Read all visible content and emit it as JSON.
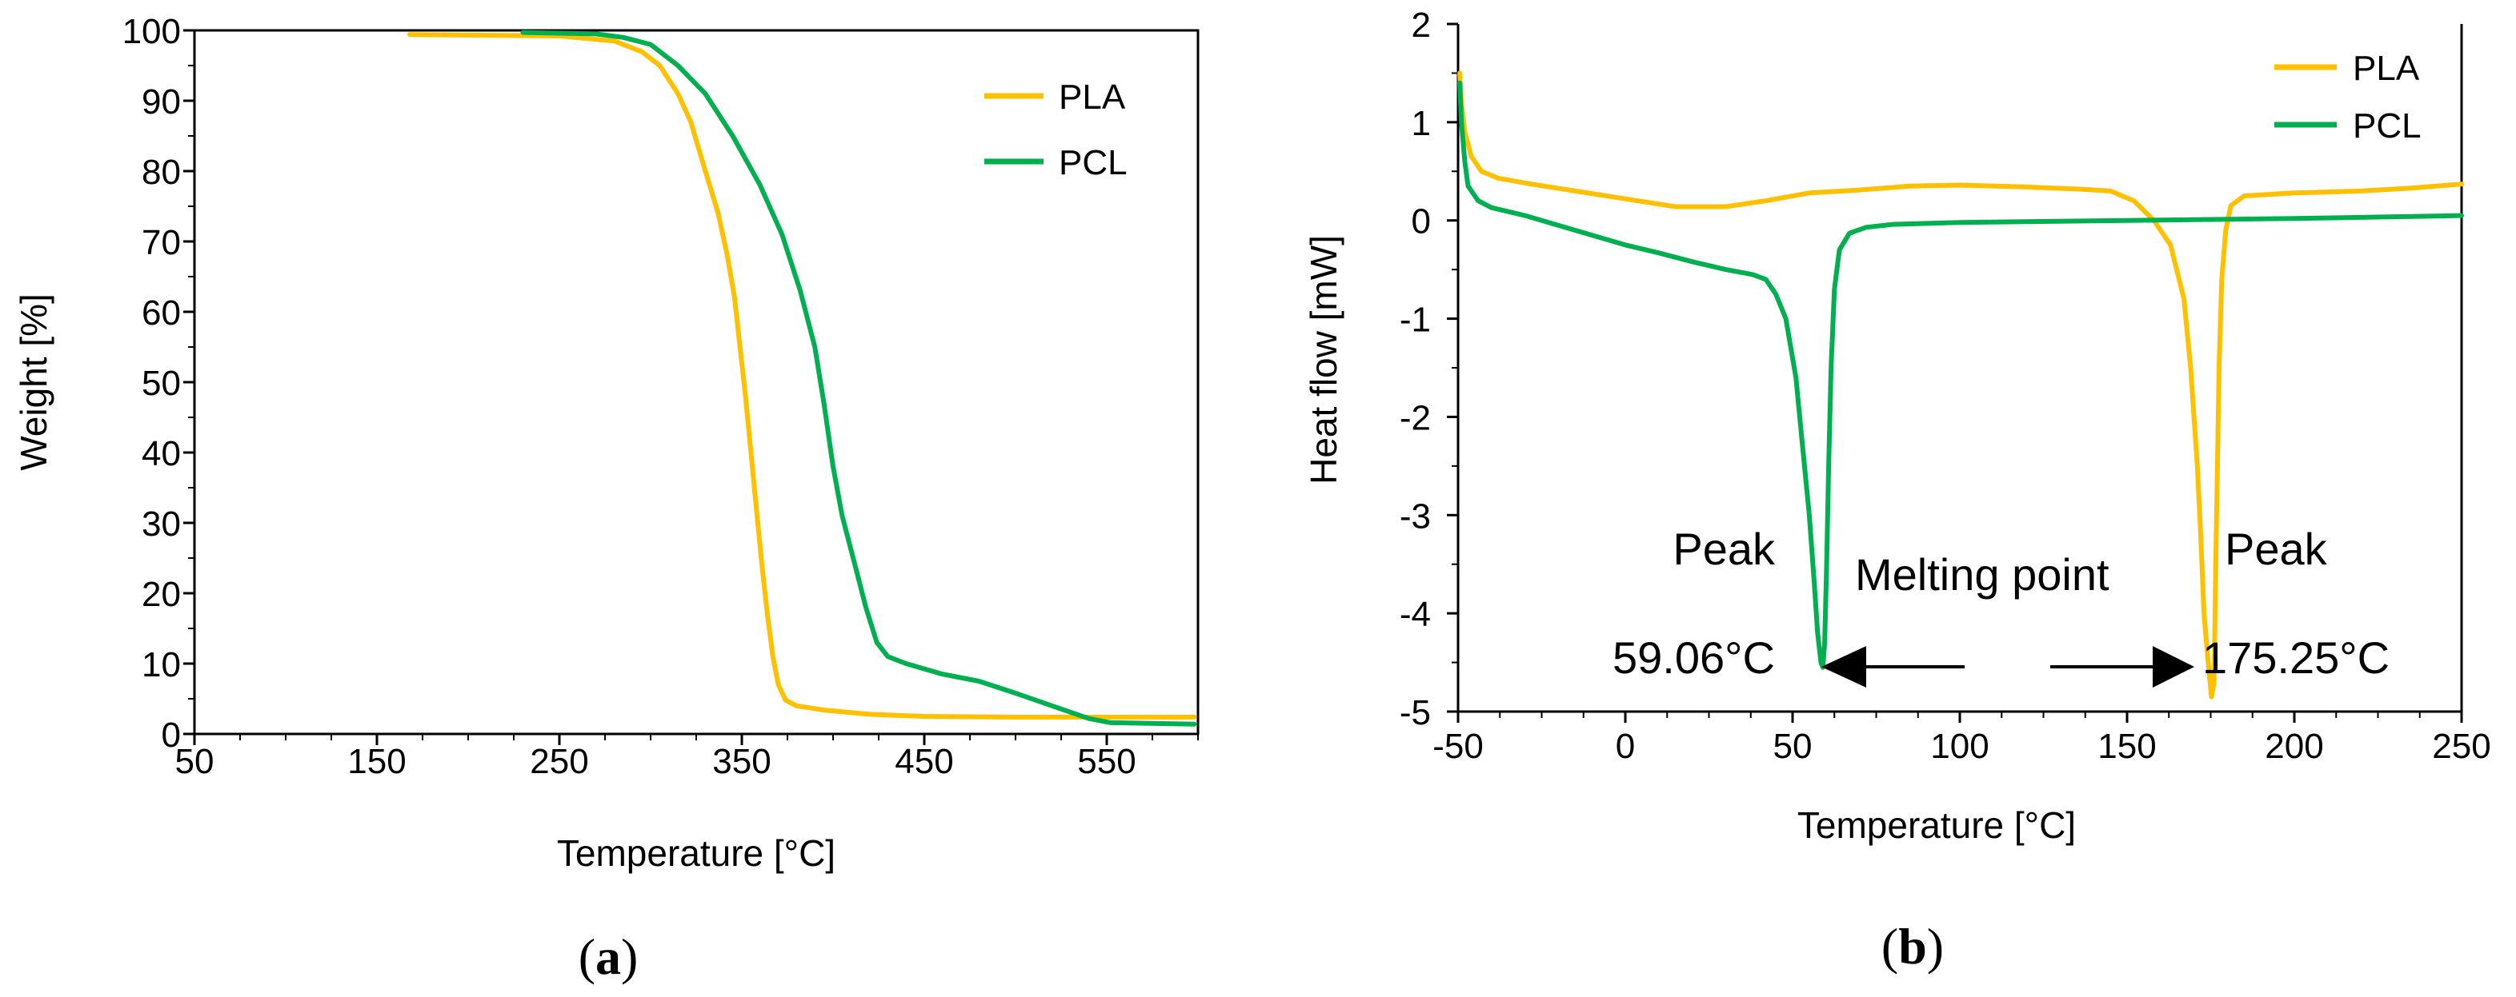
{
  "colors": {
    "PLA": "#FFC000",
    "PCL": "#00B050",
    "axis": "#000000"
  },
  "chart_data": [
    {
      "panel": "a",
      "type": "line",
      "panel_label_open": "(",
      "panel_label_letter": "a",
      "panel_label_close": ")",
      "xlabel": "Temperature [°C]",
      "ylabel": "Weight [%]",
      "xlim": [
        50,
        600
      ],
      "ylim": [
        0,
        100
      ],
      "xticks": [
        50,
        150,
        250,
        350,
        450,
        550
      ],
      "xtick_labels": [
        "50",
        "150",
        "250",
        "350",
        "450",
        "550"
      ],
      "yticks": [
        0,
        10,
        20,
        30,
        40,
        50,
        60,
        70,
        80,
        90,
        100
      ],
      "ytick_labels": [
        "0",
        "10",
        "20",
        "30",
        "40",
        "50",
        "60",
        "70",
        "80",
        "90",
        "100"
      ],
      "legend_position": "top-right",
      "series": [
        {
          "name": "PLA",
          "points": [
            [
              168,
              99.4
            ],
            [
              250,
              99.2
            ],
            [
              280,
              98.5
            ],
            [
              295,
              97
            ],
            [
              305,
              95
            ],
            [
              315,
              91
            ],
            [
              322,
              87
            ],
            [
              330,
              80
            ],
            [
              337,
              74
            ],
            [
              342,
              68
            ],
            [
              346,
              62
            ],
            [
              349,
              55
            ],
            [
              352,
              48
            ],
            [
              355,
              40
            ],
            [
              358,
              32
            ],
            [
              361,
              24
            ],
            [
              364,
              17
            ],
            [
              367,
              11
            ],
            [
              370,
              7
            ],
            [
              374,
              4.8
            ],
            [
              380,
              4.0
            ],
            [
              395,
              3.4
            ],
            [
              420,
              2.8
            ],
            [
              450,
              2.5
            ],
            [
              500,
              2.4
            ],
            [
              598,
              2.4
            ]
          ]
        },
        {
          "name": "PCL",
          "points": [
            [
              230,
              99.7
            ],
            [
              270,
              99.5
            ],
            [
              285,
              99
            ],
            [
              300,
              98
            ],
            [
              315,
              95
            ],
            [
              330,
              91
            ],
            [
              345,
              85
            ],
            [
              360,
              78
            ],
            [
              372,
              71
            ],
            [
              382,
              63
            ],
            [
              390,
              55
            ],
            [
              395,
              47
            ],
            [
              400,
              38
            ],
            [
              405,
              31
            ],
            [
              412,
              24
            ],
            [
              418,
              18
            ],
            [
              424,
              13
            ],
            [
              430,
              11
            ],
            [
              440,
              10
            ],
            [
              460,
              8.5
            ],
            [
              480,
              7.5
            ],
            [
              500,
              5.8
            ],
            [
              520,
              4.0
            ],
            [
              540,
              2.2
            ],
            [
              552,
              1.6
            ],
            [
              598,
              1.4
            ]
          ]
        }
      ]
    },
    {
      "panel": "b",
      "type": "line",
      "panel_label_open": "(",
      "panel_label_letter": "b",
      "panel_label_close": ")",
      "xlabel": "Temperature [°C]",
      "ylabel": "Heat flow [mW]",
      "xlim": [
        -50,
        250
      ],
      "ylim": [
        -5,
        2
      ],
      "xticks": [
        -50,
        0,
        50,
        100,
        150,
        200,
        250
      ],
      "xtick_labels": [
        "-50",
        "0",
        "50",
        "100",
        "150",
        "200",
        "250"
      ],
      "yticks": [
        -5,
        -4,
        -3,
        -2,
        -1,
        0,
        1,
        2
      ],
      "ytick_labels": [
        "-5",
        "-4",
        "-3",
        "-2",
        "-1",
        "0",
        "1",
        "2"
      ],
      "legend_position": "top-right",
      "annotations": {
        "melting_point": "Melting point",
        "peak_left": "Peak",
        "peak_left_temp": "59.06°C",
        "peak_right": "Peak",
        "peak_right_temp": "175.25°C"
      },
      "series": [
        {
          "name": "PLA",
          "points": [
            [
              -49.5,
              1.5
            ],
            [
              -49,
              1.2
            ],
            [
              -48,
              0.9
            ],
            [
              -46,
              0.65
            ],
            [
              -43,
              0.5
            ],
            [
              -38,
              0.43
            ],
            [
              -28,
              0.37
            ],
            [
              -15,
              0.3
            ],
            [
              0,
              0.22
            ],
            [
              15,
              0.14
            ],
            [
              30,
              0.14
            ],
            [
              42,
              0.2
            ],
            [
              55,
              0.28
            ],
            [
              70,
              0.31
            ],
            [
              85,
              0.35
            ],
            [
              100,
              0.36
            ],
            [
              120,
              0.34
            ],
            [
              135,
              0.32
            ],
            [
              145,
              0.3
            ],
            [
              152,
              0.2
            ],
            [
              158,
              0.0
            ],
            [
              163,
              -0.25
            ],
            [
              167,
              -0.8
            ],
            [
              169,
              -1.5
            ],
            [
              171,
              -2.5
            ],
            [
              172,
              -3.2
            ],
            [
              173,
              -4.0
            ],
            [
              174,
              -4.4
            ],
            [
              174.8,
              -4.7
            ],
            [
              175.25,
              -4.85
            ],
            [
              176,
              -4.7
            ],
            [
              176.5,
              -3.5
            ],
            [
              177,
              -2.5
            ],
            [
              177.5,
              -1.5
            ],
            [
              178.3,
              -0.6
            ],
            [
              179.5,
              -0.1
            ],
            [
              181,
              0.15
            ],
            [
              185,
              0.25
            ],
            [
              200,
              0.28
            ],
            [
              220,
              0.3
            ],
            [
              235,
              0.33
            ],
            [
              250,
              0.37
            ]
          ]
        },
        {
          "name": "PCL",
          "points": [
            [
              -49.5,
              1.4
            ],
            [
              -49,
              1.0
            ],
            [
              -48,
              0.6
            ],
            [
              -47,
              0.35
            ],
            [
              -44,
              0.2
            ],
            [
              -40,
              0.13
            ],
            [
              -30,
              0.05
            ],
            [
              -20,
              -0.05
            ],
            [
              -10,
              -0.15
            ],
            [
              0,
              -0.25
            ],
            [
              10,
              -0.33
            ],
            [
              20,
              -0.42
            ],
            [
              30,
              -0.5
            ],
            [
              38,
              -0.55
            ],
            [
              42,
              -0.6
            ],
            [
              45,
              -0.75
            ],
            [
              48,
              -1.0
            ],
            [
              51,
              -1.6
            ],
            [
              53,
              -2.3
            ],
            [
              55,
              -3.0
            ],
            [
              56.5,
              -3.7
            ],
            [
              57.5,
              -4.2
            ],
            [
              58.5,
              -4.5
            ],
            [
              59.06,
              -4.55
            ],
            [
              59.6,
              -4.3
            ],
            [
              60.2,
              -3.5
            ],
            [
              60.8,
              -2.5
            ],
            [
              61.5,
              -1.5
            ],
            [
              62.5,
              -0.7
            ],
            [
              64,
              -0.3
            ],
            [
              67,
              -0.13
            ],
            [
              72,
              -0.07
            ],
            [
              80,
              -0.04
            ],
            [
              100,
              -0.02
            ],
            [
              150,
              0.0
            ],
            [
              200,
              0.02
            ],
            [
              250,
              0.05
            ]
          ]
        }
      ]
    }
  ]
}
